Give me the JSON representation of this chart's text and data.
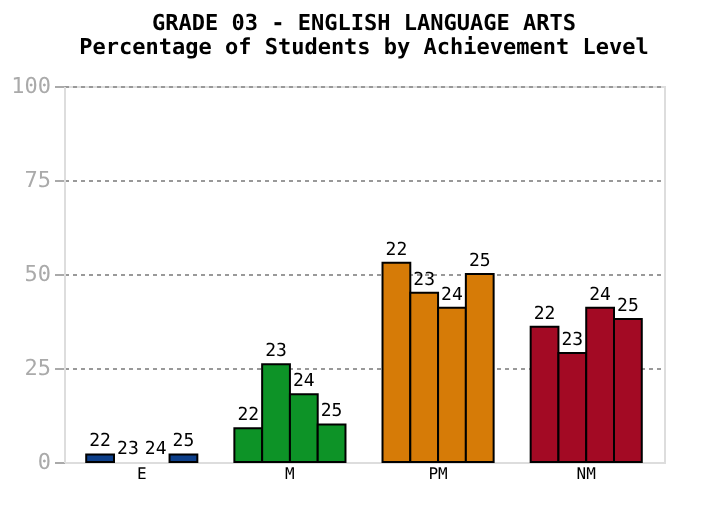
{
  "chart_data": {
    "type": "bar",
    "title": "GRADE 03 - ENGLISH LANGUAGE ARTS",
    "subtitle": "Percentage of Students by Achievement Level",
    "categories": [
      "E",
      "M",
      "PM",
      "NM"
    ],
    "series": [
      {
        "name": "22",
        "colors": [
          "#0d3f8a",
          "#0d9327",
          "#d67b07",
          "#a30a24"
        ],
        "values": [
          2,
          9,
          53,
          36
        ]
      },
      {
        "name": "23",
        "colors": [
          "#0d3f8a",
          "#0d9327",
          "#d67b07",
          "#a30a24"
        ],
        "values": [
          0,
          26,
          45,
          29
        ]
      },
      {
        "name": "24",
        "colors": [
          "#0d3f8a",
          "#0d9327",
          "#d67b07",
          "#a30a24"
        ],
        "values": [
          0,
          18,
          41,
          41
        ]
      },
      {
        "name": "25",
        "colors": [
          "#0d3f8a",
          "#0d9327",
          "#d67b07",
          "#a30a24"
        ],
        "values": [
          2,
          10,
          50,
          38
        ]
      }
    ],
    "ylim": [
      0,
      100
    ],
    "yticks": [
      0,
      25,
      50,
      75,
      100
    ],
    "grid": "y"
  }
}
